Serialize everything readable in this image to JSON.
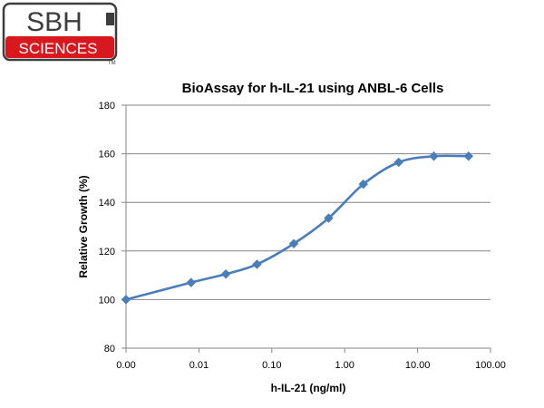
{
  "logo": {
    "text_top": "SBH",
    "text_bottom": "SCIENCES",
    "trademark": "TM",
    "colors": {
      "red": "#d7191f",
      "dark": "#3d3d3d",
      "white": "#ffffff"
    }
  },
  "chart_data": {
    "type": "line",
    "title": "BioAssay for h-IL-21 using ANBL-6 Cells",
    "xlabel": "h-IL-21 (ng/ml)",
    "ylabel": "Relative Growth (%)",
    "x_scale": "log",
    "x_tick_labels": [
      "0.00",
      "0.01",
      "0.10",
      "1.00",
      "10.00",
      "100.00"
    ],
    "x_tick_values": [
      0.001,
      0.01,
      0.1,
      1,
      10,
      100
    ],
    "ylim": [
      80,
      180
    ],
    "y_ticks": [
      80,
      100,
      120,
      140,
      160,
      180
    ],
    "grid": "horizontal",
    "legend": "none",
    "series": [
      {
        "x": [
          0.001,
          0.0078,
          0.0234,
          0.0625,
          0.2,
          0.6,
          1.8,
          5.5,
          16.7,
          50
        ],
        "y": [
          100,
          107,
          110.5,
          114.5,
          123,
          133.5,
          147.5,
          156.5,
          159,
          159
        ],
        "color": "#4a7ebb",
        "marker": "diamond"
      }
    ]
  }
}
